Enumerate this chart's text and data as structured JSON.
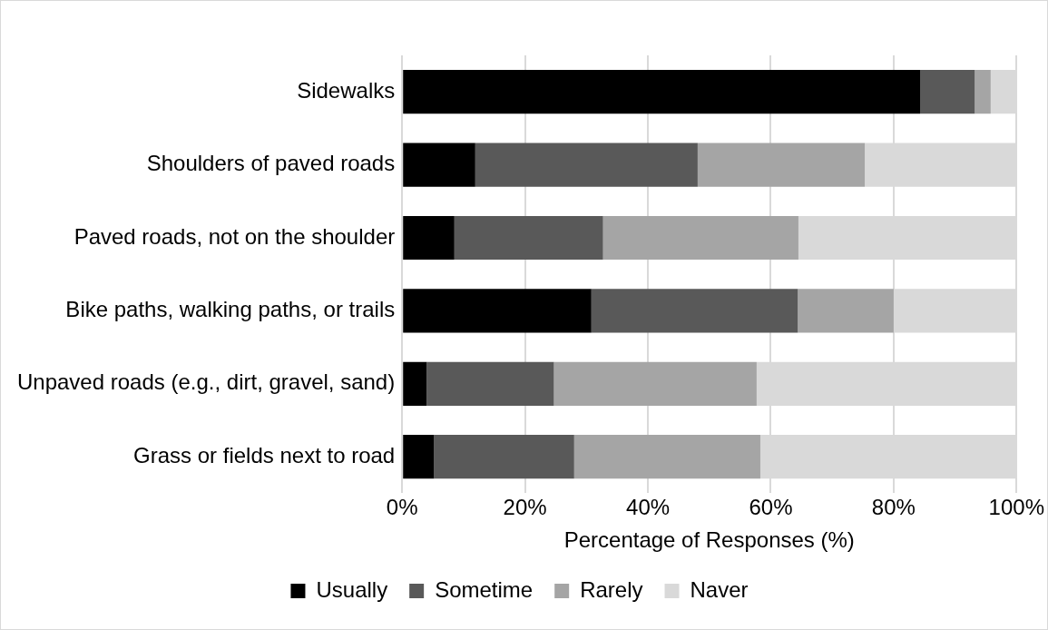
{
  "chart_data": {
    "type": "bar",
    "orientation": "horizontal",
    "stacked": true,
    "xlabel": "Percentage of Responses (%)",
    "categories": [
      "Sidewalks",
      "Shoulders of paved roads",
      "Paved roads, not on the shoulder",
      "Bike paths, walking paths, or trails",
      "Unpaved roads (e.g., dirt, gravel, sand)",
      "Grass or fields next to road"
    ],
    "series": [
      {
        "name": "Usually",
        "color": "#000000",
        "values": [
          84.3,
          11.9,
          8.5,
          30.8,
          4.0,
          5.2
        ]
      },
      {
        "name": "Sometime",
        "color": "#595959",
        "values": [
          8.9,
          36.2,
          24.2,
          33.6,
          20.7,
          22.8
        ]
      },
      {
        "name": "Rarely",
        "color": "#a5a5a5",
        "values": [
          2.6,
          27.2,
          31.8,
          15.6,
          33.0,
          30.3
        ]
      },
      {
        "name": "Naver",
        "color": "#d9d9d9",
        "values": [
          4.2,
          24.7,
          35.5,
          20.0,
          42.3,
          41.7
        ]
      }
    ],
    "xlim": [
      0,
      100
    ],
    "xticks": [
      {
        "value": 0,
        "label": "0%"
      },
      {
        "value": 20,
        "label": "20%"
      },
      {
        "value": 40,
        "label": "40%"
      },
      {
        "value": 60,
        "label": "60%"
      },
      {
        "value": 80,
        "label": "80%"
      },
      {
        "value": 100,
        "label": "100%"
      }
    ],
    "grid": "x",
    "legend": "bottom"
  }
}
